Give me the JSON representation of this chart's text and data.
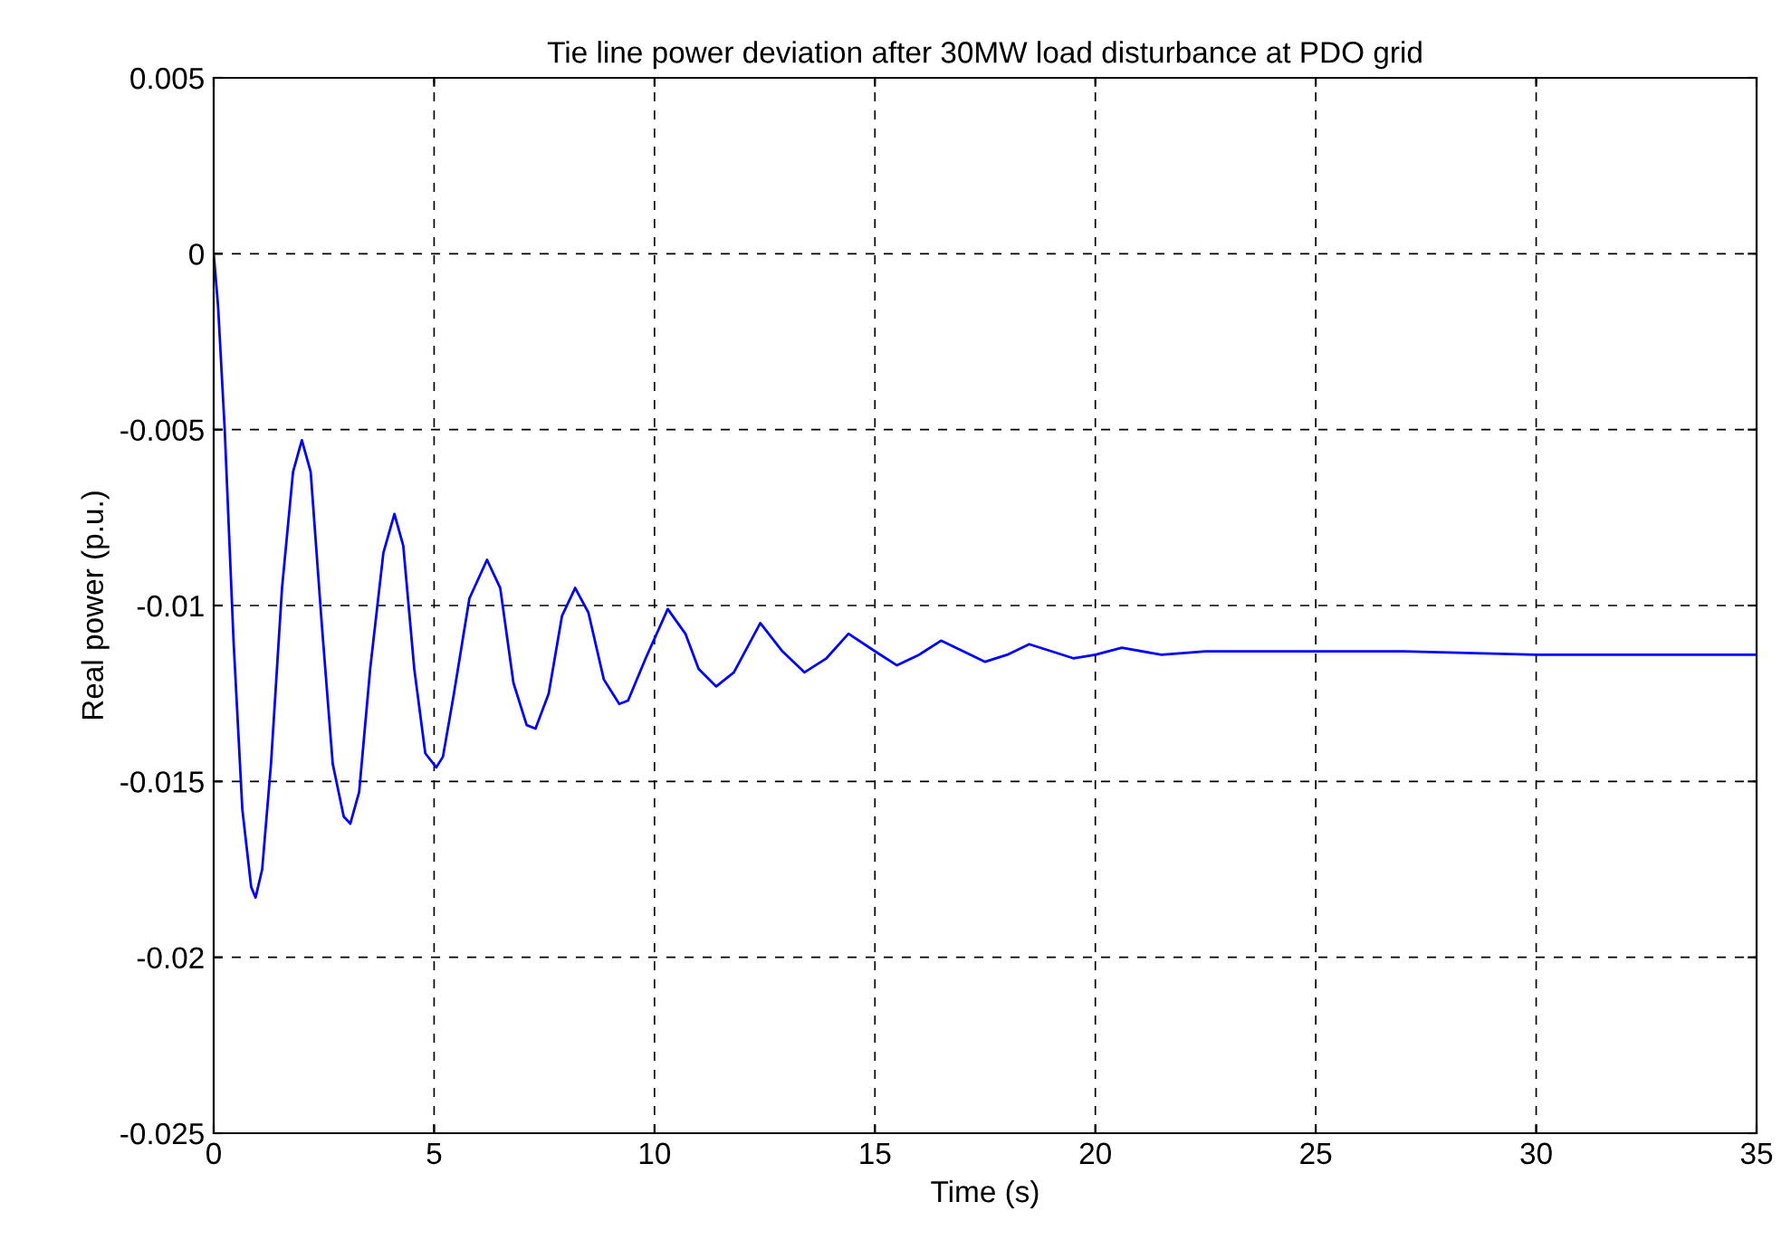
{
  "chart_data": {
    "type": "line",
    "title": "Tie line power deviation after 30MW load disturbance at PDO grid",
    "xlabel": "Time (s)",
    "ylabel": "Real power (p.u.)",
    "series": [
      {
        "color": "#0000ff",
        "x": [
          0,
          0.1,
          0.25,
          0.45,
          0.65,
          0.85,
          0.95,
          1.1,
          1.3,
          1.55,
          1.8,
          2.0,
          2.2,
          2.45,
          2.7,
          2.95,
          3.1,
          3.3,
          3.55,
          3.85,
          4.1,
          4.3,
          4.55,
          4.8,
          5.05,
          5.2,
          5.45,
          5.8,
          6.2,
          6.5,
          6.8,
          7.1,
          7.3,
          7.6,
          7.9,
          8.2,
          8.5,
          8.85,
          9.2,
          9.4,
          9.8,
          10.3,
          10.7,
          11.0,
          11.4,
          11.8,
          12.4,
          12.9,
          13.4,
          13.9,
          14.4,
          15.0,
          15.5,
          16.0,
          16.5,
          17.0,
          17.5,
          18.0,
          18.5,
          19.0,
          19.5,
          20.0,
          20.6,
          21.5,
          22.5,
          25,
          27,
          30,
          35
        ],
        "values": [
          0,
          -0.0015,
          -0.005,
          -0.011,
          -0.0158,
          -0.018,
          -0.0183,
          -0.0175,
          -0.0145,
          -0.0095,
          -0.0062,
          -0.0053,
          -0.0062,
          -0.0105,
          -0.0145,
          -0.016,
          -0.0162,
          -0.0153,
          -0.0118,
          -0.0085,
          -0.0074,
          -0.0083,
          -0.0118,
          -0.0142,
          -0.0146,
          -0.0143,
          -0.0125,
          -0.0098,
          -0.0087,
          -0.0095,
          -0.0122,
          -0.0134,
          -0.0135,
          -0.0125,
          -0.0103,
          -0.0095,
          -0.0102,
          -0.0121,
          -0.0128,
          -0.0127,
          -0.0115,
          -0.0101,
          -0.0108,
          -0.0118,
          -0.0123,
          -0.0119,
          -0.0105,
          -0.0113,
          -0.0119,
          -0.0115,
          -0.0108,
          -0.0113,
          -0.0117,
          -0.0114,
          -0.011,
          -0.0113,
          -0.0116,
          -0.0114,
          -0.0111,
          -0.0113,
          -0.0115,
          -0.0114,
          -0.0112,
          -0.0114,
          -0.0113,
          -0.0113,
          -0.0113,
          -0.0114,
          -0.0114
        ]
      }
    ],
    "xlim": [
      0,
      35
    ],
    "ylim": [
      -0.025,
      0.005
    ],
    "xticks": [
      0,
      5,
      10,
      15,
      20,
      25,
      30,
      35
    ],
    "yticks": [
      -0.025,
      -0.02,
      -0.015,
      -0.01,
      -0.005,
      0,
      0.005
    ],
    "grid": true,
    "line_style": "solid",
    "marker": "none"
  }
}
